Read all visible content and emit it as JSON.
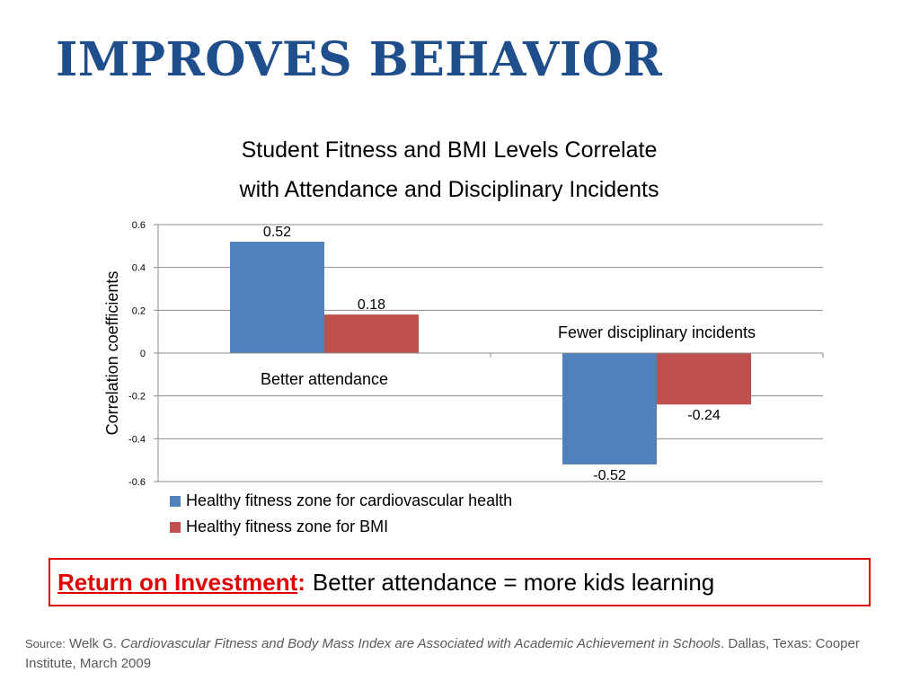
{
  "slide": {
    "title": "IMPROVES BEHAVIOR"
  },
  "chart_data": {
    "type": "bar",
    "title_lines": [
      "Student Fitness and BMI Levels Correlate",
      "with Attendance and Disciplinary Incidents"
    ],
    "categories": [
      "Better attendance",
      "Fewer disciplinary incidents"
    ],
    "series": [
      {
        "name": "Healthy fitness zone for cardiovascular health",
        "values": [
          0.52,
          -0.52
        ],
        "labels": [
          "0.52",
          "-0.52"
        ],
        "color": "#4f81bd"
      },
      {
        "name": "Healthy fitness zone for BMI",
        "values": [
          0.18,
          -0.24
        ],
        "labels": [
          "0.18",
          "-0.24"
        ],
        "color": "#c0504d"
      }
    ],
    "ylabel": "Correlation coefficients",
    "xlabel": "",
    "ylim": [
      -0.6,
      0.6
    ],
    "yticks": [
      0.6,
      0.4,
      0.2,
      0,
      -0.2,
      -0.4,
      -0.6
    ],
    "ytick_labels": [
      "0.6",
      "0.4",
      "0.2",
      "0",
      "-0.2",
      "-0.4",
      "-0.6"
    ],
    "grid": true,
    "legend_position": "bottom"
  },
  "roi": {
    "label": "Return on Investment",
    "colon": ":",
    "text": "Better attendance = more kids learning"
  },
  "source": {
    "prefix": "Source:",
    "author": "Welk G.",
    "title": "Cardiovascular Fitness and Body Mass Index are Associated with Academic Achievement in Schools",
    "rest": ". Dallas, Texas: Cooper Institute, March 2009"
  }
}
